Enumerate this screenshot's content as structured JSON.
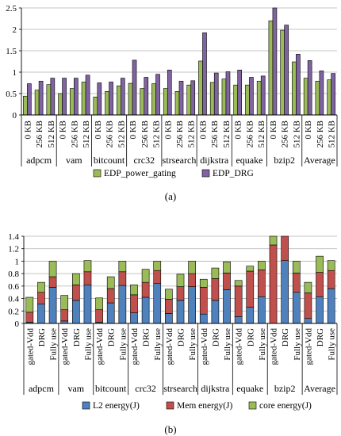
{
  "chart_data": [
    {
      "type": "bar",
      "caption": "(a)",
      "groups": [
        "adpcm",
        "vam",
        "bitcount",
        "crc32",
        "strsearch",
        "dijkstra",
        "equake",
        "bzip2",
        "Average"
      ],
      "categories": [
        "0 KB",
        "256 KB",
        "512 KB"
      ],
      "ylim": [
        0,
        2.5
      ],
      "yticks": [
        0,
        0.5,
        1,
        1.5,
        2,
        2.5
      ],
      "grid": true,
      "legend": "bottom",
      "series": [
        {
          "name": "EDP_power_gating",
          "color": "#9bbb59",
          "values": [
            [
              0.44,
              0.58,
              0.71
            ],
            [
              0.5,
              0.62,
              0.77
            ],
            [
              0.42,
              0.55,
              0.68
            ],
            [
              0.74,
              0.62,
              0.73
            ],
            [
              0.62,
              0.55,
              0.7
            ],
            [
              1.26,
              0.76,
              0.84
            ],
            [
              0.7,
              0.7,
              0.79
            ],
            [
              2.2,
              1.98,
              1.24
            ],
            [
              0.86,
              0.79,
              0.82
            ]
          ]
        },
        {
          "name": "EDP_DRG",
          "color": "#8064a2",
          "values": [
            [
              0.73,
              0.79,
              0.86
            ],
            [
              0.86,
              0.86,
              0.93
            ],
            [
              0.75,
              0.77,
              0.86
            ],
            [
              1.28,
              0.88,
              0.95
            ],
            [
              1.05,
              0.79,
              0.8
            ],
            [
              1.92,
              0.98,
              1.01
            ],
            [
              1.05,
              0.88,
              0.91
            ],
            [
              2.5,
              2.1,
              1.42
            ],
            [
              1.27,
              1.03,
              0.97
            ]
          ]
        }
      ]
    },
    {
      "type": "bar",
      "stacked": true,
      "caption": "(b)",
      "groups": [
        "adpcm",
        "vam",
        "bitcount",
        "crc32",
        "strsearch",
        "dijkstra",
        "equake",
        "bzip2",
        "Average"
      ],
      "categories": [
        "gated-Vdd",
        "DRG",
        "Fully use"
      ],
      "ylim": [
        0,
        1.4
      ],
      "yticks": [
        0,
        0.2,
        0.4,
        0.6,
        0.8,
        1,
        1.2,
        1.4
      ],
      "grid": true,
      "legend": "bottom",
      "series": [
        {
          "name": "L2 energy(J)",
          "color": "#4f81bd",
          "values": [
            [
              0.02,
              0.31,
              0.58
            ],
            [
              0.04,
              0.37,
              0.62
            ],
            [
              0.02,
              0.33,
              0.61
            ],
            [
              0.17,
              0.42,
              0.64
            ],
            [
              0.16,
              0.37,
              0.59
            ],
            [
              0.15,
              0.37,
              0.54
            ],
            [
              0.11,
              0.26,
              0.43
            ],
            [
              0.0,
              1.01,
              0.5
            ],
            [
              0.08,
              0.43,
              0.56
            ]
          ]
        },
        {
          "name": "Mem energy(J)",
          "color": "#c0504d",
          "values": [
            [
              0.16,
              0.19,
              0.17
            ],
            [
              0.18,
              0.25,
              0.21
            ],
            [
              0.2,
              0.23,
              0.22
            ],
            [
              0.29,
              0.24,
              0.21
            ],
            [
              0.23,
              0.22,
              0.21
            ],
            [
              0.43,
              0.35,
              0.27
            ],
            [
              0.49,
              0.58,
              0.43
            ],
            [
              1.26,
              0.41,
              0.31
            ],
            [
              0.41,
              0.39,
              0.29
            ]
          ]
        },
        {
          "name": "core energy(J)",
          "color": "#9bbb59",
          "values": [
            [
              0.24,
              0.16,
              0.25
            ],
            [
              0.23,
              0.18,
              0.18
            ],
            [
              0.19,
              0.19,
              0.17
            ],
            [
              0.16,
              0.21,
              0.15
            ],
            [
              0.16,
              0.2,
              0.2
            ],
            [
              0.13,
              0.17,
              0.18
            ],
            [
              0.09,
              0.08,
              0.14
            ],
            [
              0.14,
              0.0,
              0.19
            ],
            [
              0.17,
              0.26,
              0.16
            ]
          ]
        }
      ]
    }
  ]
}
